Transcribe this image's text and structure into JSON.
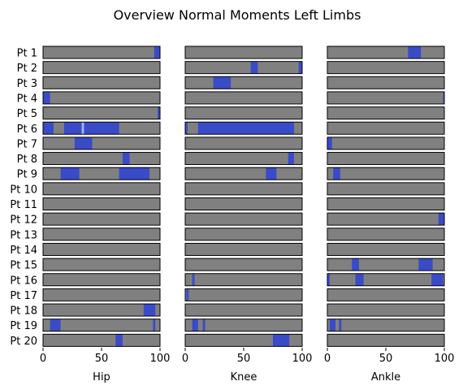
{
  "chart_data": {
    "type": "heatmap",
    "title": "Overview Normal Moments Left Limbs",
    "x_ticks": [
      0,
      50,
      100
    ],
    "xlim": [
      0,
      100
    ],
    "rows": [
      "Pt 1",
      "Pt 2",
      "Pt 3",
      "Pt 4",
      "Pt 5",
      "Pt 6",
      "Pt 7",
      "Pt 8",
      "Pt 9",
      "Pt 10",
      "Pt 11",
      "Pt 12",
      "Pt 13",
      "Pt 14",
      "Pt 15",
      "Pt 16",
      "Pt 17",
      "Pt 18",
      "Pt 19",
      "Pt 20"
    ],
    "colors": {
      "background": "#808080",
      "highlight": "#3a4bc8",
      "light": "#9fb4f5"
    },
    "panels": [
      {
        "xlabel": "Hip",
        "rows": [
          [
            [
              95,
              100
            ]
          ],
          [],
          [],
          [
            [
              0,
              6
            ]
          ],
          [
            [
              98,
              100
            ]
          ],
          [
            [
              0,
              9
            ],
            [
              18,
              33
            ],
            [
              35,
              65
            ]
          ],
          [
            [
              27,
              42
            ]
          ],
          [
            [
              68,
              74
            ]
          ],
          [
            [
              15,
              31
            ],
            [
              65,
              91
            ]
          ],
          [],
          [],
          [],
          [],
          [],
          [],
          [],
          [],
          [
            [
              86,
              96
            ]
          ],
          [
            [
              6,
              15
            ],
            [
              94,
              96
            ]
          ],
          [
            [
              62,
              68
            ]
          ]
        ],
        "light_marks": [
          [
            5,
            33,
            35
          ]
        ]
      },
      {
        "xlabel": "Knee",
        "rows": [
          [],
          [
            [
              56,
              62
            ],
            [
              97,
              100
            ]
          ],
          [
            [
              24,
              39
            ]
          ],
          [],
          [],
          [
            [
              0,
              2
            ],
            [
              11,
              93
            ]
          ],
          [],
          [
            [
              88,
              93
            ]
          ],
          [
            [
              69,
              78
            ]
          ],
          [],
          [],
          [],
          [],
          [],
          [],
          [
            [
              6,
              8
            ]
          ],
          [
            [
              1,
              3
            ]
          ],
          [],
          [
            [
              6,
              11
            ],
            [
              15,
              17
            ]
          ],
          [
            [
              75,
              89
            ]
          ]
        ],
        "light_marks": []
      },
      {
        "xlabel": "Ankle",
        "rows": [
          [
            [
              69,
              80
            ]
          ],
          [],
          [],
          [
            [
              99,
              100
            ]
          ],
          [],
          [],
          [
            [
              0,
              4
            ]
          ],
          [],
          [
            [
              5,
              11
            ]
          ],
          [],
          [],
          [
            [
              95,
              100
            ]
          ],
          [],
          [],
          [
            [
              21,
              27
            ],
            [
              78,
              90
            ]
          ],
          [
            [
              0,
              2
            ],
            [
              24,
              31
            ],
            [
              89,
              99
            ]
          ],
          [],
          [],
          [
            [
              2,
              7
            ],
            [
              10,
              12
            ]
          ],
          []
        ],
        "light_marks": []
      }
    ]
  }
}
